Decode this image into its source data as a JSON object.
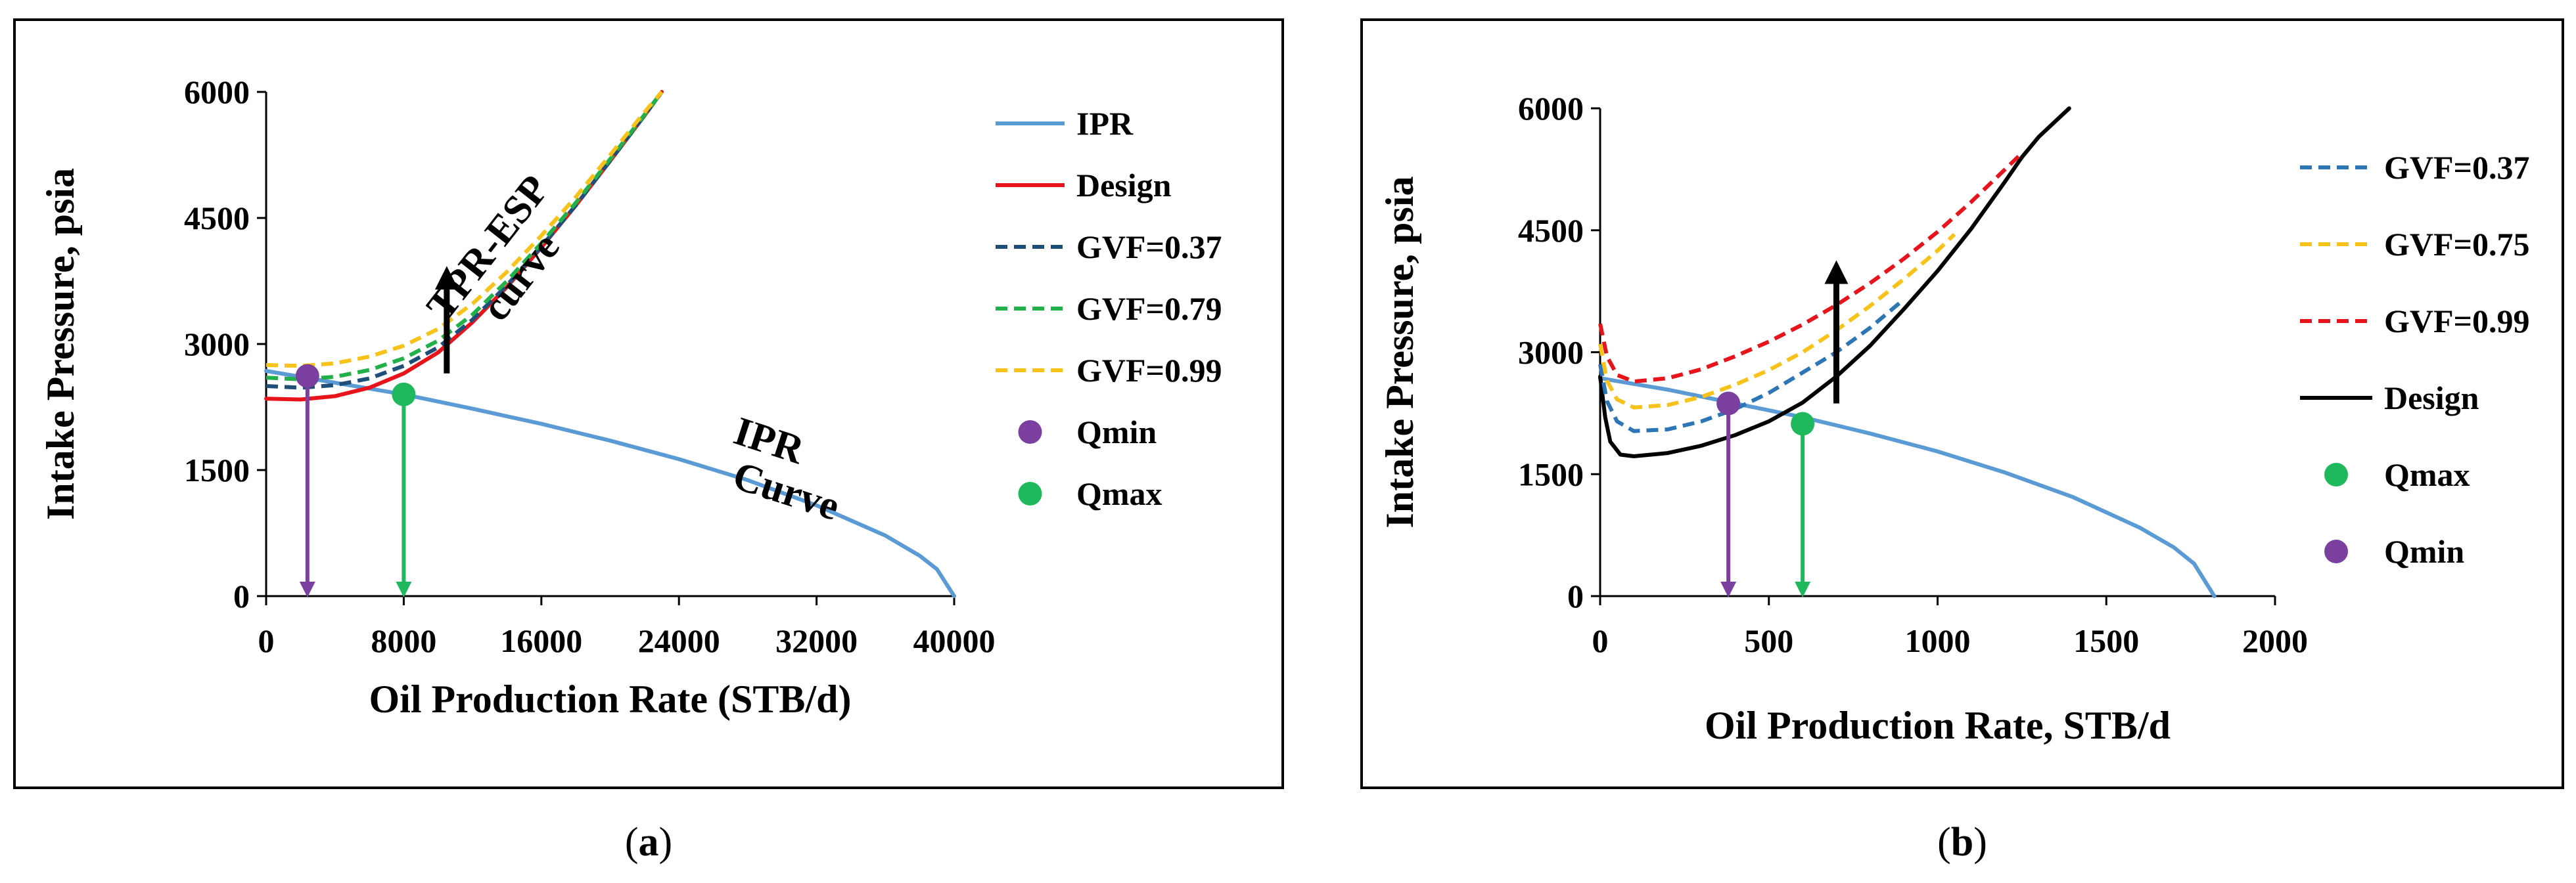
{
  "figure": {
    "panel_a_caption": {
      "open": "(",
      "letter": "a",
      "close": ")"
    },
    "panel_b_caption": {
      "open": "(",
      "letter": "b",
      "close": ")"
    }
  },
  "chart_data": [
    {
      "id": "a",
      "type": "line",
      "title": "",
      "xlabel": "Oil Production Rate (STB/d)",
      "ylabel": "Intake Pressure, psia",
      "xlim": [
        0,
        40000
      ],
      "ylim": [
        0,
        6000
      ],
      "xticks": [
        0,
        8000,
        16000,
        24000,
        32000,
        40000
      ],
      "xtick_labels": [
        "0",
        "8000",
        "16000",
        "24000",
        "32000",
        "40000"
      ],
      "yticks": [
        0,
        1500,
        3000,
        4500,
        6000
      ],
      "ytick_labels": [
        "0",
        "1500",
        "3000",
        "4500",
        "6000"
      ],
      "grid": false,
      "legend_position": "right",
      "colors": {
        "ipr": "#5b9bd5",
        "design": "#e8141c",
        "gvf037": "#1f4e79",
        "gvf079": "#22b04a",
        "gvf099": "#f7c31a",
        "qmin": "#7b3fa0",
        "qmax": "#1fb85c",
        "arrow": "#000000"
      },
      "series": [
        {
          "name": "IPR",
          "key": "ipr",
          "style": "solid",
          "x": [
            0,
            4000,
            8000,
            12000,
            16000,
            20000,
            24000,
            28000,
            32000,
            36000,
            38000,
            39000,
            40000
          ],
          "y": [
            2680,
            2540,
            2400,
            2230,
            2050,
            1850,
            1630,
            1380,
            1080,
            720,
            480,
            320,
            0
          ]
        },
        {
          "name": "Design",
          "key": "design",
          "style": "solid",
          "x": [
            0,
            2000,
            4000,
            6000,
            8000,
            10000,
            12000,
            14000,
            16000,
            18000,
            20000,
            22000,
            23000
          ],
          "y": [
            2350,
            2340,
            2380,
            2480,
            2650,
            2900,
            3260,
            3680,
            4150,
            4650,
            5180,
            5720,
            6000
          ]
        },
        {
          "name": "GVF=0.37",
          "key": "gvf037",
          "style": "dashed",
          "x": [
            0,
            2000,
            4000,
            6000,
            8000,
            10000,
            12000,
            14000,
            16000,
            18000,
            20000,
            22000,
            23000
          ],
          "y": [
            2500,
            2480,
            2510,
            2590,
            2740,
            2960,
            3290,
            3700,
            4160,
            4650,
            5180,
            5720,
            6000
          ]
        },
        {
          "name": "GVF=0.79",
          "key": "gvf079",
          "style": "dashed",
          "x": [
            0,
            2000,
            4000,
            6000,
            8000,
            10000,
            12000,
            14000,
            16000,
            18000,
            20000,
            22000,
            23000
          ],
          "y": [
            2600,
            2580,
            2610,
            2690,
            2830,
            3040,
            3350,
            3750,
            4200,
            4680,
            5200,
            5730,
            6000
          ]
        },
        {
          "name": "GVF=0.99",
          "key": "gvf099",
          "style": "dashed",
          "x": [
            0,
            2000,
            4000,
            6000,
            8000,
            10000,
            12000,
            14000,
            16000,
            18000,
            20000,
            22000,
            23000
          ],
          "y": [
            2750,
            2740,
            2770,
            2850,
            2980,
            3180,
            3480,
            3860,
            4290,
            4750,
            5250,
            5760,
            6000
          ]
        }
      ],
      "markers": [
        {
          "name": "Qmin",
          "key": "qmin",
          "x": 2400,
          "y": 2620
        },
        {
          "name": "Qmax",
          "key": "qmax",
          "x": 8000,
          "y": 2400
        }
      ],
      "drop_arrows": [
        {
          "key": "qmin",
          "x": 2400,
          "y_from": 2620,
          "y_to": 0
        },
        {
          "key": "qmax",
          "x": 8000,
          "y_from": 2400,
          "y_to": 0
        }
      ],
      "up_arrows": [
        {
          "x": 10500,
          "y_from": 2650,
          "y_to": 3850
        }
      ],
      "annotations": [
        {
          "text": "TPR-ESP",
          "x": 13500,
          "y": 4050,
          "angle": -52
        },
        {
          "text": "curve",
          "x": 15400,
          "y": 3700,
          "angle": -52
        },
        {
          "text": "IPR",
          "x": 29000,
          "y": 1700,
          "angle": 18
        },
        {
          "text": "Curve",
          "x": 30000,
          "y": 1100,
          "angle": 18
        }
      ],
      "legend": [
        {
          "label": "IPR",
          "key": "ipr",
          "kind": "solid"
        },
        {
          "label": "Design",
          "key": "design",
          "kind": "solid"
        },
        {
          "label": "GVF=0.37",
          "key": "gvf037",
          "kind": "dashed"
        },
        {
          "label": "GVF=0.79",
          "key": "gvf079",
          "kind": "dashed"
        },
        {
          "label": "GVF=0.99",
          "key": "gvf099",
          "kind": "dashed"
        },
        {
          "label": "Qmin",
          "key": "qmin",
          "kind": "marker"
        },
        {
          "label": "Qmax",
          "key": "qmax",
          "kind": "marker"
        }
      ]
    },
    {
      "id": "b",
      "type": "line",
      "title": "",
      "xlabel": "Oil Production Rate, STB/d",
      "ylabel": "Intake Pressure, psia",
      "xlim": [
        0,
        2000
      ],
      "ylim": [
        0,
        6000
      ],
      "xticks": [
        0,
        500,
        1000,
        1500,
        2000
      ],
      "xtick_labels": [
        "0",
        "500",
        "1000",
        "1500",
        "2000"
      ],
      "yticks": [
        0,
        1500,
        3000,
        4500,
        6000
      ],
      "ytick_labels": [
        "0",
        "1500",
        "3000",
        "4500",
        "6000"
      ],
      "grid": false,
      "legend_position": "right",
      "colors": {
        "ipr": "#5b9bd5",
        "design": "#000000",
        "gvf037": "#2e75b6",
        "gvf075": "#f7c31a",
        "gvf099": "#e8141c",
        "qmin": "#7b3fa0",
        "qmax": "#1fb85c",
        "arrow": "#000000"
      },
      "series": [
        {
          "name": "IPR",
          "key": "ipr",
          "style": "solid",
          "x": [
            0,
            100,
            200,
            400,
            600,
            800,
            1000,
            1200,
            1400,
            1600,
            1700,
            1760,
            1820
          ],
          "y": [
            2680,
            2610,
            2540,
            2370,
            2200,
            2000,
            1780,
            1520,
            1220,
            840,
            600,
            400,
            0
          ]
        },
        {
          "name": "Design",
          "key": "design",
          "style": "solid",
          "x": [
            0,
            15,
            30,
            60,
            100,
            200,
            300,
            400,
            500,
            600,
            700,
            800,
            900,
            1000,
            1100,
            1200,
            1250,
            1300,
            1390
          ],
          "y": [
            2700,
            2200,
            1900,
            1740,
            1720,
            1760,
            1850,
            1980,
            2150,
            2380,
            2700,
            3080,
            3530,
            4000,
            4520,
            5100,
            5400,
            5650,
            6000
          ]
        },
        {
          "name": "GVF=0.37",
          "key": "gvf037",
          "style": "dashed",
          "x": [
            0,
            20,
            50,
            100,
            200,
            300,
            400,
            500,
            600,
            700,
            800,
            900
          ],
          "y": [
            2850,
            2400,
            2150,
            2030,
            2050,
            2150,
            2300,
            2500,
            2750,
            3000,
            3300,
            3650
          ]
        },
        {
          "name": "GVF=0.75",
          "key": "gvf075",
          "style": "dashed",
          "x": [
            0,
            20,
            50,
            100,
            200,
            300,
            400,
            500,
            600,
            700,
            800,
            900,
            1000,
            1050
          ],
          "y": [
            3100,
            2650,
            2420,
            2320,
            2350,
            2450,
            2600,
            2780,
            3000,
            3270,
            3570,
            3900,
            4250,
            4450
          ]
        },
        {
          "name": "GVF=0.99",
          "key": "gvf099",
          "style": "dashed",
          "x": [
            0,
            20,
            50,
            100,
            200,
            300,
            400,
            500,
            600,
            700,
            800,
            900,
            1000,
            1100,
            1200,
            1250
          ],
          "y": [
            3350,
            2950,
            2720,
            2640,
            2680,
            2790,
            2950,
            3130,
            3340,
            3580,
            3850,
            4150,
            4480,
            4850,
            5250,
            5450
          ]
        }
      ],
      "markers": [
        {
          "name": "Qmin",
          "key": "qmin",
          "x": 380,
          "y": 2370
        },
        {
          "name": "Qmax",
          "key": "qmax",
          "x": 600,
          "y": 2120
        }
      ],
      "drop_arrows": [
        {
          "key": "qmin",
          "x": 380,
          "y_from": 2370,
          "y_to": 0
        },
        {
          "key": "qmax",
          "x": 600,
          "y_from": 2120,
          "y_to": 0
        }
      ],
      "up_arrows": [
        {
          "x": 700,
          "y_from": 2370,
          "y_to": 4050
        }
      ],
      "annotations": [],
      "legend": [
        {
          "label": "GVF=0.37",
          "key": "gvf037",
          "kind": "dashed"
        },
        {
          "label": "GVF=0.75",
          "key": "gvf075",
          "kind": "dashed"
        },
        {
          "label": "GVF=0.99",
          "key": "gvf099",
          "kind": "dashed"
        },
        {
          "label": "Design",
          "key": "design",
          "kind": "solid"
        },
        {
          "label": "Qmax",
          "key": "qmax",
          "kind": "marker"
        },
        {
          "label": "Qmin",
          "key": "qmin",
          "kind": "marker"
        }
      ]
    }
  ]
}
